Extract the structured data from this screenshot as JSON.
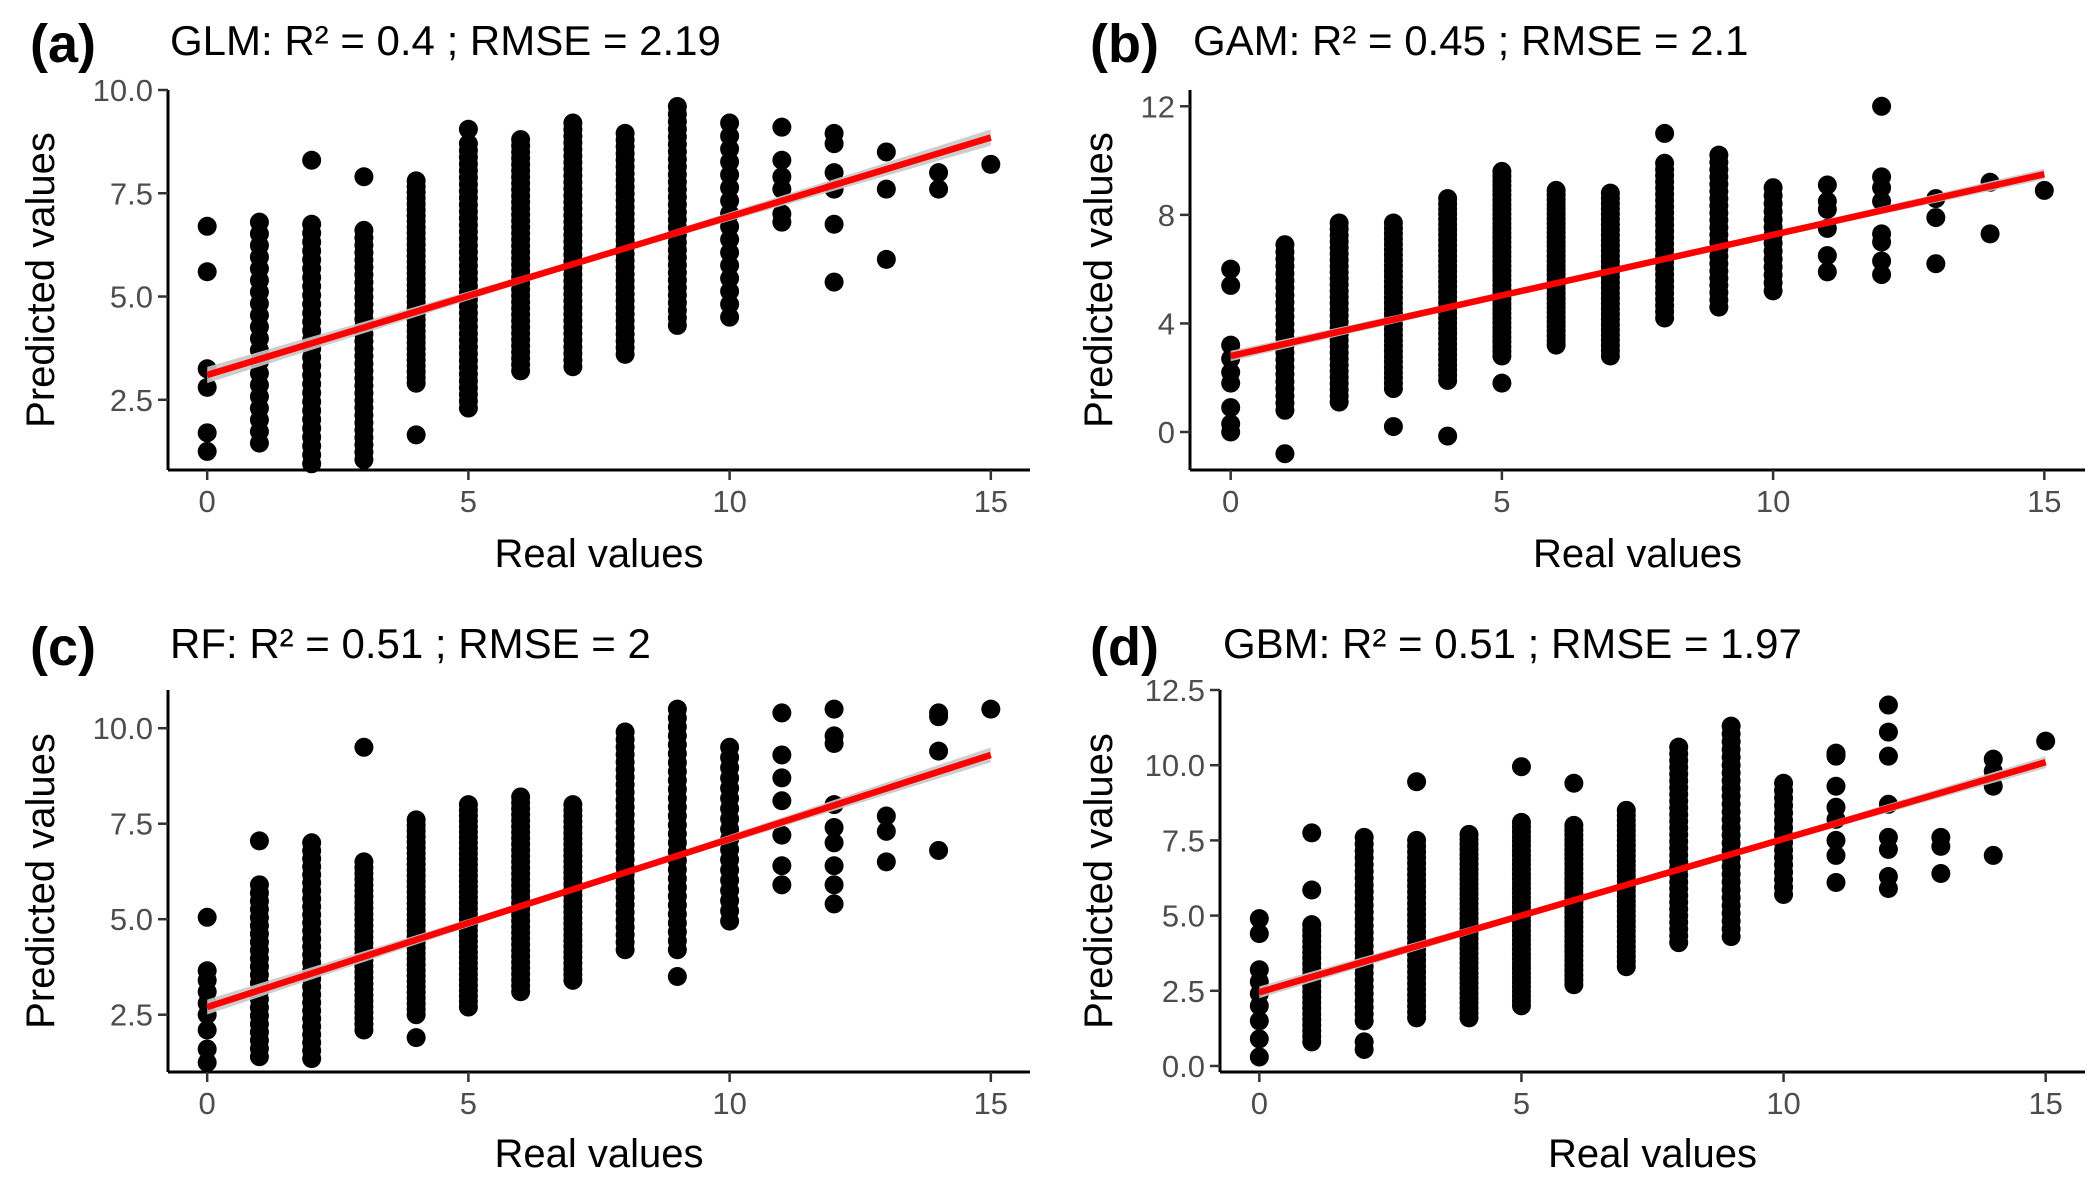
{
  "colors": {
    "points": "#000000",
    "fit_line": "#ff0000",
    "ci_band": "#c8c8c8"
  },
  "chart_data": [
    {
      "type": "scatter",
      "panel": "(a)",
      "title": "GLM: R² =  0.4 ; RMSE =  2.19",
      "xlabel": "Real values",
      "ylabel": "Predicted values",
      "xlim": [
        -0.75,
        15.75
      ],
      "ylim": [
        0.8,
        10.0
      ],
      "xticks": [
        0,
        5,
        10,
        15
      ],
      "yticks": [
        2.5,
        5.0,
        7.5,
        10.0
      ],
      "tick_labels_x": [
        "0",
        "5",
        "10",
        "15"
      ],
      "tick_labels_y": [
        "2.5",
        "5.0",
        "7.5",
        "10.0"
      ],
      "fit": {
        "x": [
          0,
          15
        ],
        "y": [
          3.1,
          8.85
        ]
      },
      "columns": [
        {
          "x": 0,
          "values": [
            1.25,
            1.7,
            2.8,
            3.25,
            5.6,
            6.7
          ]
        },
        {
          "x": 1,
          "min": 1.45,
          "max": 6.8,
          "n": 20
        },
        {
          "x": 2,
          "min": 0.95,
          "max": 6.75,
          "n": 28,
          "extra": [
            8.3
          ]
        },
        {
          "x": 3,
          "min": 1.05,
          "max": 6.6,
          "n": 32,
          "extra": [
            7.9
          ]
        },
        {
          "x": 4,
          "min": 2.9,
          "max": 7.8,
          "n": 36,
          "extra": [
            1.65
          ]
        },
        {
          "x": 5,
          "min": 2.3,
          "max": 8.7,
          "n": 40,
          "extra": [
            9.05
          ]
        },
        {
          "x": 6,
          "min": 3.2,
          "max": 8.8,
          "n": 38
        },
        {
          "x": 7,
          "min": 3.3,
          "max": 9.2,
          "n": 38
        },
        {
          "x": 8,
          "min": 3.6,
          "max": 8.95,
          "n": 34
        },
        {
          "x": 9,
          "min": 4.3,
          "max": 9.6,
          "n": 30
        },
        {
          "x": 10,
          "min": 4.5,
          "max": 9.2,
          "n": 16
        },
        {
          "x": 11,
          "values": [
            6.8,
            7.0,
            7.6,
            7.9,
            8.3,
            9.1
          ]
        },
        {
          "x": 12,
          "values": [
            5.35,
            6.75,
            7.6,
            8.0,
            8.7,
            8.95
          ]
        },
        {
          "x": 13,
          "values": [
            5.9,
            7.6,
            8.5
          ]
        },
        {
          "x": 14,
          "values": [
            7.6,
            8.0
          ]
        },
        {
          "x": 15,
          "values": [
            8.2
          ]
        }
      ]
    },
    {
      "type": "scatter",
      "panel": "(b)",
      "title": "GAM: R² =  0.45 ; RMSE =  2.1",
      "xlabel": "Real values",
      "ylabel": "Predicted values",
      "xlim": [
        -0.75,
        15.75
      ],
      "ylim": [
        -1.4,
        12.6
      ],
      "xticks": [
        0,
        5,
        10,
        15
      ],
      "yticks": [
        0,
        4,
        8,
        12
      ],
      "tick_labels_x": [
        "0",
        "5",
        "10",
        "15"
      ],
      "tick_labels_y": [
        "0",
        "4",
        "8",
        "12"
      ],
      "fit": {
        "x": [
          0,
          15
        ],
        "y": [
          2.8,
          9.5
        ]
      },
      "columns": [
        {
          "x": 0,
          "values": [
            0.0,
            0.3,
            0.9,
            1.8,
            2.2,
            2.7,
            3.2,
            5.4,
            6.0
          ]
        },
        {
          "x": 1,
          "min": 0.8,
          "max": 6.9,
          "n": 24,
          "extra": [
            -0.8
          ]
        },
        {
          "x": 2,
          "min": 1.1,
          "max": 7.7,
          "n": 30
        },
        {
          "x": 3,
          "min": 1.6,
          "max": 7.7,
          "n": 32,
          "extra": [
            0.2
          ]
        },
        {
          "x": 4,
          "min": 1.9,
          "max": 8.6,
          "n": 36,
          "extra": [
            -0.15
          ]
        },
        {
          "x": 5,
          "min": 2.8,
          "max": 9.6,
          "n": 40,
          "extra": [
            1.8
          ]
        },
        {
          "x": 6,
          "min": 3.2,
          "max": 8.9,
          "n": 34
        },
        {
          "x": 7,
          "min": 2.8,
          "max": 8.8,
          "n": 32
        },
        {
          "x": 8,
          "min": 4.2,
          "max": 9.9,
          "n": 26,
          "extra": [
            11.0
          ]
        },
        {
          "x": 9,
          "min": 4.6,
          "max": 10.2,
          "n": 22
        },
        {
          "x": 10,
          "min": 5.2,
          "max": 9.0,
          "n": 14
        },
        {
          "x": 11,
          "values": [
            5.9,
            6.5,
            7.5,
            8.2,
            8.5,
            9.1
          ]
        },
        {
          "x": 12,
          "values": [
            5.8,
            6.3,
            7.0,
            7.3,
            8.5,
            9.0,
            9.4,
            12.0
          ]
        },
        {
          "x": 13,
          "values": [
            6.2,
            7.9,
            8.6
          ]
        },
        {
          "x": 14,
          "values": [
            7.3,
            9.2
          ]
        },
        {
          "x": 15,
          "values": [
            8.9
          ]
        }
      ]
    },
    {
      "type": "scatter",
      "panel": "(c)",
      "title": "RF: R² =  0.51 ; RMSE =  2",
      "xlabel": "Real values",
      "ylabel": "Predicted values",
      "xlim": [
        -0.75,
        15.75
      ],
      "ylim": [
        1.0,
        11.0
      ],
      "xticks": [
        0,
        5,
        10,
        15
      ],
      "yticks": [
        2.5,
        5.0,
        7.5,
        10.0
      ],
      "tick_labels_x": [
        "0",
        "5",
        "10",
        "15"
      ],
      "tick_labels_y": [
        "2.5",
        "5.0",
        "7.5",
        "10.0"
      ],
      "fit": {
        "x": [
          0,
          15
        ],
        "y": [
          2.7,
          9.3
        ]
      },
      "columns": [
        {
          "x": 0,
          "values": [
            1.25,
            1.6,
            2.1,
            2.5,
            2.8,
            3.1,
            3.4,
            3.65,
            5.05
          ]
        },
        {
          "x": 1,
          "min": 1.4,
          "max": 5.9,
          "n": 22,
          "extra": [
            7.05
          ]
        },
        {
          "x": 2,
          "min": 1.35,
          "max": 7.0,
          "n": 28
        },
        {
          "x": 3,
          "min": 2.1,
          "max": 6.5,
          "n": 30,
          "extra": [
            9.5
          ]
        },
        {
          "x": 4,
          "min": 2.5,
          "max": 7.6,
          "n": 36,
          "extra": [
            1.9
          ]
        },
        {
          "x": 5,
          "min": 2.7,
          "max": 8.0,
          "n": 38
        },
        {
          "x": 6,
          "min": 3.1,
          "max": 8.2,
          "n": 34
        },
        {
          "x": 7,
          "min": 3.4,
          "max": 8.0,
          "n": 32
        },
        {
          "x": 8,
          "min": 4.2,
          "max": 9.9,
          "n": 30
        },
        {
          "x": 9,
          "min": 4.2,
          "max": 10.5,
          "n": 28,
          "extra": [
            3.5
          ]
        },
        {
          "x": 10,
          "min": 4.95,
          "max": 9.5,
          "n": 18
        },
        {
          "x": 11,
          "values": [
            5.9,
            6.4,
            7.2,
            8.1,
            8.7,
            9.3,
            10.4
          ]
        },
        {
          "x": 12,
          "values": [
            5.4,
            5.9,
            6.4,
            7.0,
            7.4,
            8.0,
            9.6,
            9.8,
            10.5
          ]
        },
        {
          "x": 13,
          "values": [
            6.5,
            7.3,
            7.7
          ]
        },
        {
          "x": 14,
          "values": [
            6.8,
            9.4,
            10.3,
            10.4
          ]
        },
        {
          "x": 15,
          "values": [
            10.5
          ]
        }
      ]
    },
    {
      "type": "scatter",
      "panel": "(d)",
      "title": "GBM: R² =  0.51 ; RMSE =  1.97",
      "xlabel": "Real values",
      "ylabel": "Predicted values",
      "xlim": [
        -0.75,
        15.75
      ],
      "ylim": [
        -0.2,
        12.5
      ],
      "xticks": [
        0,
        5,
        10,
        15
      ],
      "yticks": [
        0.0,
        2.5,
        5.0,
        7.5,
        10.0,
        12.5
      ],
      "tick_labels_x": [
        "0",
        "5",
        "10",
        "15"
      ],
      "tick_labels_y": [
        "0.0",
        "2.5",
        "5.0",
        "7.5",
        "10.0",
        "12.5"
      ],
      "fit": {
        "x": [
          0,
          15
        ],
        "y": [
          2.45,
          10.1
        ]
      },
      "columns": [
        {
          "x": 0,
          "values": [
            0.3,
            0.9,
            1.5,
            2.0,
            2.4,
            2.8,
            3.2,
            4.4,
            4.9
          ]
        },
        {
          "x": 1,
          "min": 0.8,
          "max": 4.7,
          "n": 22,
          "extra": [
            5.85,
            7.75
          ]
        },
        {
          "x": 2,
          "min": 1.5,
          "max": 7.6,
          "n": 28,
          "extra": [
            0.55,
            0.8
          ]
        },
        {
          "x": 3,
          "min": 1.6,
          "max": 7.5,
          "n": 32,
          "extra": [
            9.45
          ]
        },
        {
          "x": 4,
          "min": 1.6,
          "max": 7.7,
          "n": 38
        },
        {
          "x": 5,
          "min": 2.0,
          "max": 8.1,
          "n": 40,
          "extra": [
            9.95
          ]
        },
        {
          "x": 6,
          "min": 2.7,
          "max": 8.0,
          "n": 34,
          "extra": [
            9.4
          ]
        },
        {
          "x": 7,
          "min": 3.3,
          "max": 8.5,
          "n": 32
        },
        {
          "x": 8,
          "min": 4.1,
          "max": 10.6,
          "n": 30
        },
        {
          "x": 9,
          "min": 4.3,
          "max": 11.3,
          "n": 28
        },
        {
          "x": 10,
          "min": 5.7,
          "max": 9.4,
          "n": 16
        },
        {
          "x": 11,
          "values": [
            6.1,
            7.0,
            7.5,
            8.2,
            8.6,
            9.3,
            10.3,
            10.4
          ]
        },
        {
          "x": 12,
          "values": [
            5.9,
            6.3,
            7.2,
            7.6,
            8.7,
            10.3,
            11.1,
            12.0
          ]
        },
        {
          "x": 13,
          "values": [
            6.4,
            7.3,
            7.6
          ]
        },
        {
          "x": 14,
          "values": [
            7.0,
            9.3,
            9.8,
            10.2
          ]
        },
        {
          "x": 15,
          "values": [
            10.8
          ]
        }
      ]
    }
  ]
}
